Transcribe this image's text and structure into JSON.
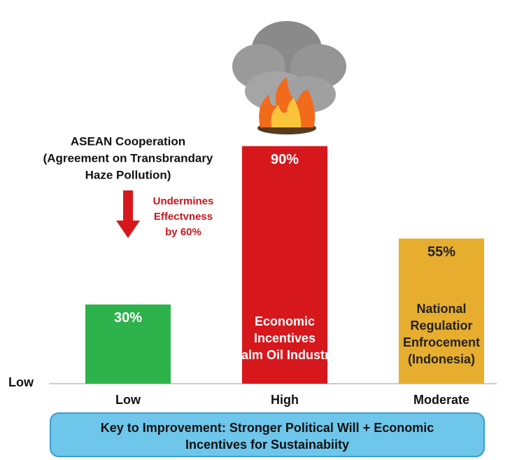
{
  "chart_data": {
    "type": "bar",
    "categories": [
      "Low",
      "High",
      "Moderate"
    ],
    "values": [
      30,
      90,
      55
    ],
    "value_labels": [
      "30%",
      "90%",
      "55%"
    ],
    "colors": [
      "#2eb24b",
      "#d6181d",
      "#e6ad2e"
    ],
    "ylim": [
      0,
      100
    ],
    "y_axis_label": "Low",
    "bar_texts": [
      null,
      [
        "Economic",
        "Incentives",
        "(Palm Oil Industry)"
      ],
      [
        "National",
        "Regulatior",
        "Enfrocement",
        "(Indonesia)"
      ]
    ],
    "annotation_asean": [
      "ASEAN Cooperation",
      "(Agreement on Transbrandary",
      "Haze Pollution)"
    ],
    "annotation_effect": [
      "Undermines",
      "Effectvness",
      "by 60%"
    ],
    "footer": [
      "Key to Improvement: Stronger Political Will + Economic",
      "Incentives for Sustainabiity"
    ]
  }
}
